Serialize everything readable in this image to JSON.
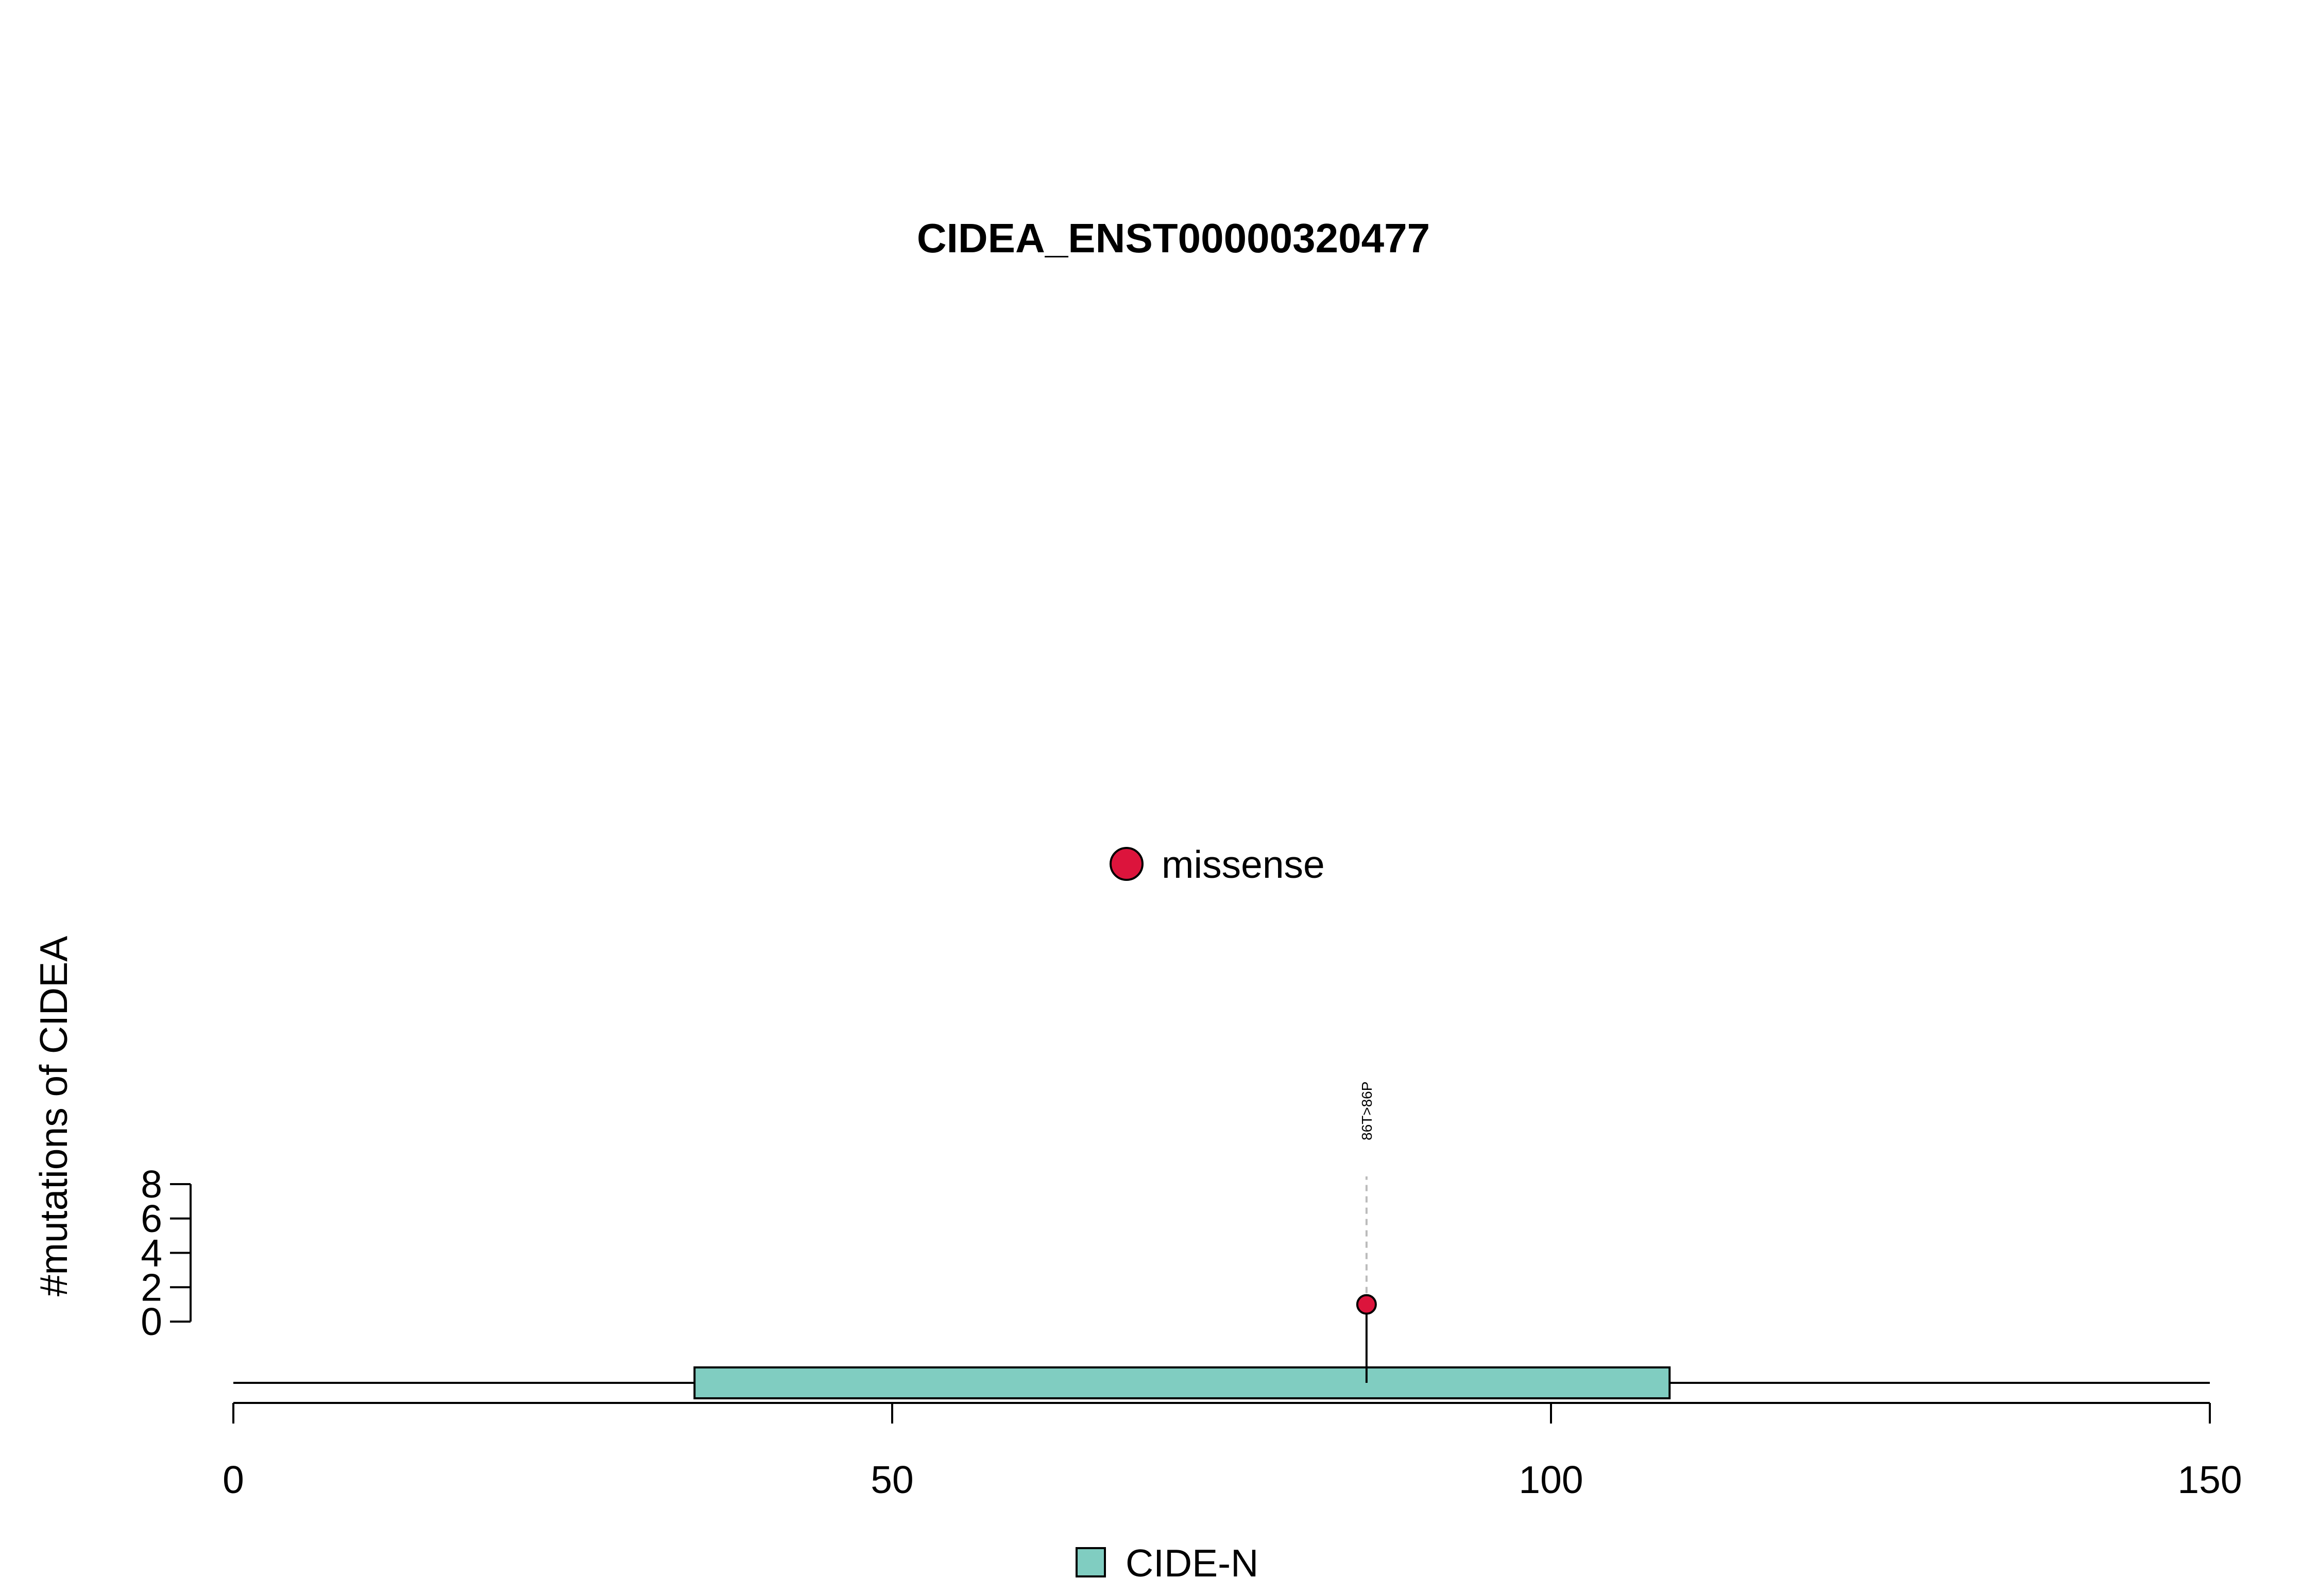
{
  "chart_data": {
    "type": "scatter",
    "subtype": "lollipop",
    "title": "CIDEA_ENST00000320477",
    "ylabel": "#mutations of CIDEA",
    "xlabel": "",
    "xlim": [
      0,
      150
    ],
    "x_ticks": [
      0,
      50,
      100,
      150
    ],
    "x_tick_labels": [
      "0",
      "50",
      "100",
      "150"
    ],
    "ylim": [
      0,
      8
    ],
    "y_ticks": [
      0,
      2,
      4,
      6,
      8
    ],
    "y_tick_labels": [
      "0",
      "2",
      "4",
      "6",
      "8"
    ],
    "protein_length": 150,
    "domains": [
      {
        "name": "CIDE-N",
        "start": 35,
        "end": 109,
        "color": "#80CDC1"
      }
    ],
    "series": [
      {
        "name": "missense",
        "color": "#DC143C",
        "points": [
          {
            "x": 86,
            "y": 1,
            "label": "86T>86P"
          }
        ]
      }
    ],
    "legend_top": [
      {
        "label": "missense",
        "color": "#DC143C"
      }
    ],
    "legend_bottom": [
      {
        "label": "CIDE-N",
        "color": "#80CDC1"
      }
    ],
    "grid": false,
    "legend_placement": "top-center and bottom-center"
  }
}
